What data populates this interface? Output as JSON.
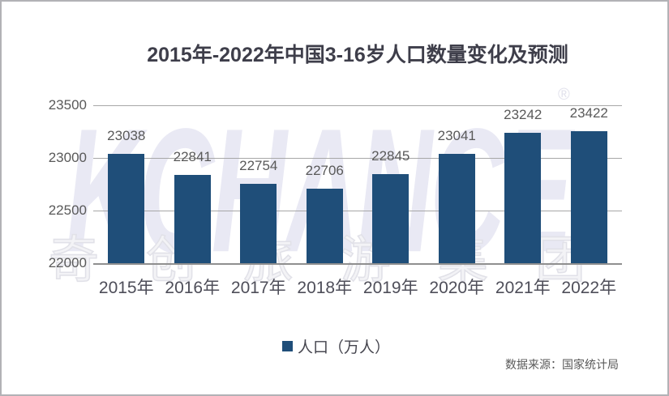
{
  "chart_data": {
    "type": "bar",
    "title": "2015年-2022年中国3-16岁人口数量变化及预测",
    "categories": [
      "2015年",
      "2016年",
      "2017年",
      "2018年",
      "2019年",
      "2020年",
      "2021年",
      "2022年"
    ],
    "series": [
      {
        "name": "人口（万人）",
        "values": [
          23038,
          22841,
          22754,
          22706,
          22845,
          23041,
          23242,
          23422
        ]
      }
    ],
    "ylim": [
      22000,
      23500
    ],
    "yticks": [
      23500,
      23000,
      22500,
      22000
    ],
    "grid": "horizontal",
    "legend_position": "bottom",
    "data_labels": true,
    "bar_color": "#1F4E79",
    "gridline_color": "#a7a7a7"
  },
  "legend": {
    "label": "人口（万人）",
    "swatch_color": "#1F4E79"
  },
  "source": {
    "text": "数据来源：国家统计局"
  },
  "watermark": {
    "text": "KCHANCE",
    "registered_mark": "®",
    "cjk_text": "奇创旅游集团"
  }
}
